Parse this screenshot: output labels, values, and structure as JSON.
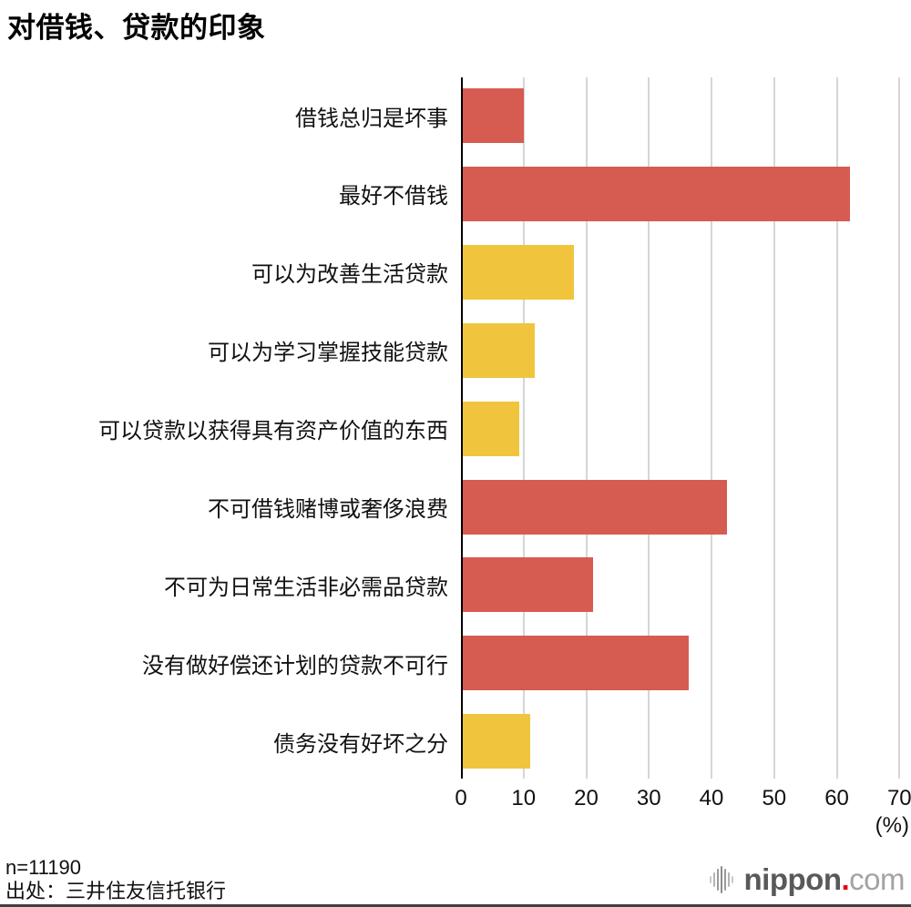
{
  "title": "对借钱、贷款的印象",
  "chart_data": {
    "type": "bar",
    "orientation": "horizontal",
    "title": "对借钱、贷款的印象",
    "categories": [
      "借钱总归是坏事",
      "最好不借钱",
      "可以为改善生活贷款",
      "可以为学习掌握技能贷款",
      "可以贷款以获得具有资产价值的东西",
      "不可借钱赌博或奢侈浪费",
      "不可为日常生活非必需品贷款",
      "没有做好偿还计划的贷款不可行",
      "债务没有好坏之分"
    ],
    "values": [
      9.8,
      61.8,
      17.8,
      11.5,
      9.0,
      42.2,
      20.8,
      36.0,
      10.8
    ],
    "bar_color_keys": [
      "red",
      "red",
      "yellow",
      "yellow",
      "yellow",
      "red",
      "red",
      "red",
      "yellow"
    ],
    "palette": {
      "red": "#d65b50",
      "yellow": "#f0c53d"
    },
    "xlim": [
      0,
      70
    ],
    "xticks": [
      "0",
      "10",
      "20",
      "30",
      "40",
      "50",
      "60",
      "70"
    ],
    "xlabel": "(%)",
    "grid": true,
    "legend": false,
    "gridline_color": "#d6d6d6",
    "axis_color": "#000000"
  },
  "footer": {
    "sample_size": "n=11190",
    "source": "出处：三井住友信托银行"
  },
  "logo": {
    "brand": "nippon",
    "dot": ".",
    "tld": "com"
  }
}
